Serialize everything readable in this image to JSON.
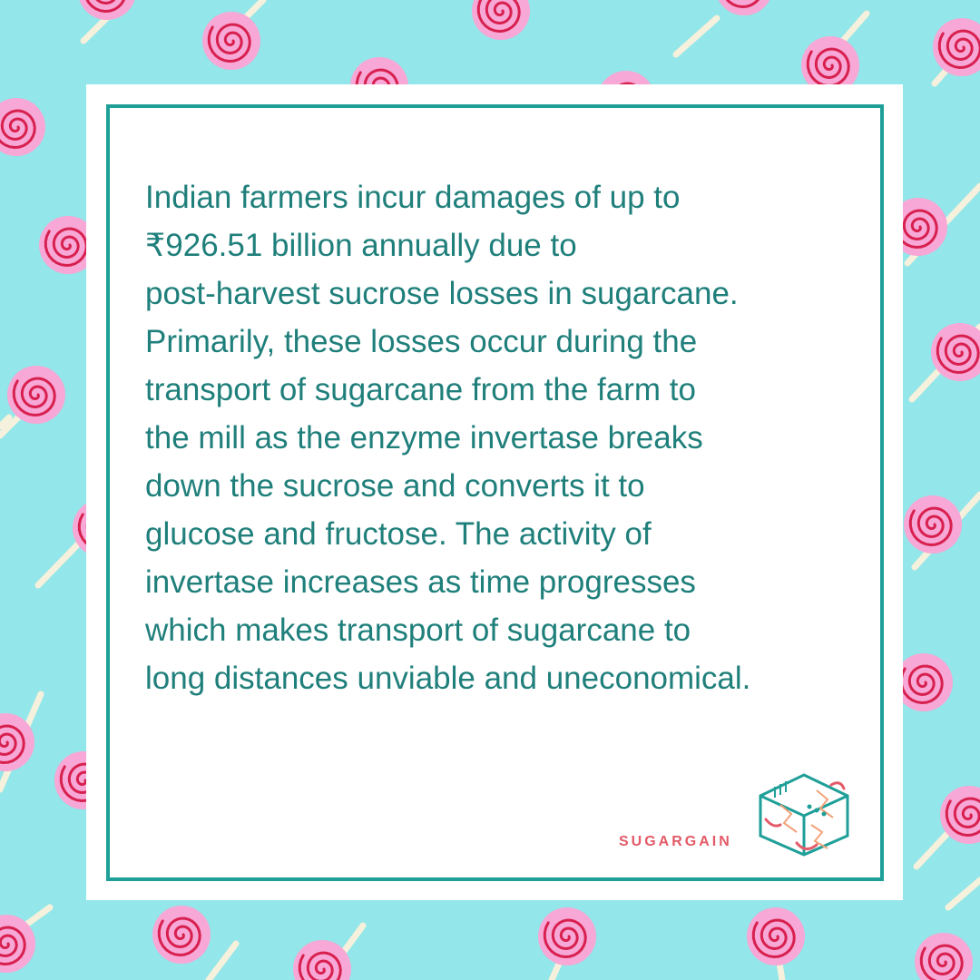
{
  "post": {
    "lines": [
      "Indian farmers incur damages of up to",
      "₹926.51 billion annually due to",
      "post-harvest sucrose losses in sugarcane.",
      "Primarily, these losses occur during the",
      "transport of sugarcane from the farm to",
      "the mill as the enzyme invertase breaks",
      "down the sucrose and converts it to",
      "glucose and fructose. The activity of",
      "invertase increases as time progresses",
      "which makes transport of sugarcane to",
      "long distances unviable and uneconomical."
    ]
  },
  "brand": {
    "name": "SUGARGAIN",
    "logo_icon": "hexagon-cube-logo-icon"
  },
  "background": {
    "pattern_icon": "lollipop-icon",
    "colors": {
      "background": "#93e6e9",
      "candy_outer": "#f7a8d6",
      "candy_swirl": "#d8204f",
      "stick": "#f6f1dc"
    }
  },
  "colors": {
    "card": "#ffffff",
    "frame": "#1e9f98",
    "text": "#1f7f7b",
    "brand_text": "#e35a68"
  }
}
